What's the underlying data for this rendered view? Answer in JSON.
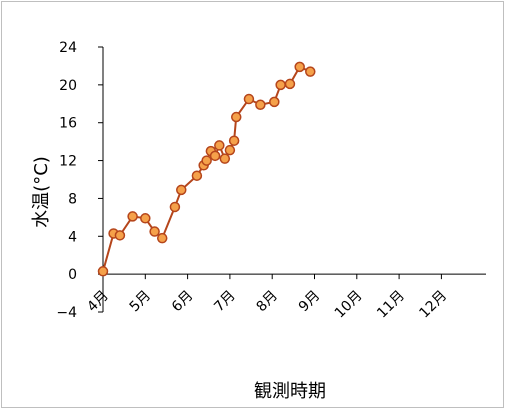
{
  "chart_data": {
    "type": "line",
    "xlabel": "観測時期",
    "ylabel": "水温(°C)",
    "ylim": [
      -4,
      24
    ],
    "yticks": [
      -4,
      0,
      4,
      8,
      12,
      16,
      20,
      24
    ],
    "xticks": [
      "4月",
      "5月",
      "6月",
      "7月",
      "8月",
      "9月",
      "10月",
      "11月",
      "12月"
    ],
    "xlim_months": [
      0,
      9
    ],
    "grid": false,
    "legend": "none",
    "series": [
      {
        "color": "#b5451b",
        "marker_fill": "#f5a14a",
        "points": [
          {
            "x": 0.0,
            "y": 0.3
          },
          {
            "x": 0.25,
            "y": 4.3
          },
          {
            "x": 0.4,
            "y": 4.1
          },
          {
            "x": 0.7,
            "y": 6.1
          },
          {
            "x": 1.0,
            "y": 5.9
          },
          {
            "x": 1.22,
            "y": 4.5
          },
          {
            "x": 1.4,
            "y": 3.8
          },
          {
            "x": 1.7,
            "y": 7.1
          },
          {
            "x": 1.85,
            "y": 8.9
          },
          {
            "x": 2.22,
            "y": 10.4
          },
          {
            "x": 2.38,
            "y": 11.5
          },
          {
            "x": 2.45,
            "y": 12.0
          },
          {
            "x": 2.55,
            "y": 13.0
          },
          {
            "x": 2.65,
            "y": 12.5
          },
          {
            "x": 2.75,
            "y": 13.6
          },
          {
            "x": 2.88,
            "y": 12.2
          },
          {
            "x": 3.0,
            "y": 13.1
          },
          {
            "x": 3.1,
            "y": 14.1
          },
          {
            "x": 3.15,
            "y": 16.6
          },
          {
            "x": 3.45,
            "y": 18.5
          },
          {
            "x": 3.72,
            "y": 17.9
          },
          {
            "x": 4.05,
            "y": 18.2
          },
          {
            "x": 4.2,
            "y": 20.0
          },
          {
            "x": 4.42,
            "y": 20.1
          },
          {
            "x": 4.65,
            "y": 21.9
          },
          {
            "x": 4.9,
            "y": 21.4
          }
        ]
      }
    ]
  }
}
